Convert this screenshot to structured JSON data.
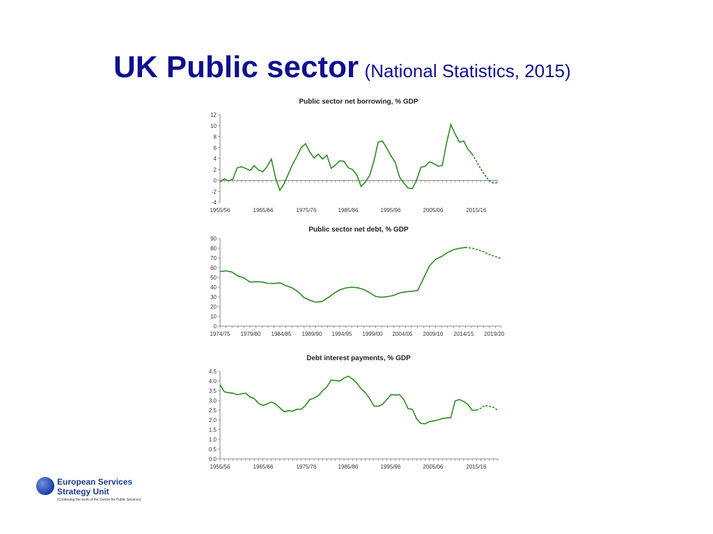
{
  "slide": {
    "title_main": "UK Public sector",
    "title_sub": "(National Statistics, 2015)"
  },
  "logo": {
    "line1": "European Services",
    "line2": "Strategy Unit",
    "tagline": "(Continuing the work of the Centre for Public Services)"
  },
  "colors": {
    "series": "#2a8a1f",
    "title": "#0f0f8f",
    "logo": "#1b3a8a"
  },
  "chart_data": [
    {
      "type": "line",
      "title": "Public sector net borrowing, % GDP",
      "ylim": [
        -4,
        12
      ],
      "yticks": [
        "-4",
        "-2",
        "0",
        "2",
        "4",
        "6",
        "8",
        "10",
        "12"
      ],
      "x_tick_labels": [
        "1955/56",
        "1965/66",
        "1975/76",
        "1985/86",
        "1995/96",
        "2005/06",
        "2015/16"
      ],
      "x_start": "1955/56",
      "x_end": "2020/21",
      "zero_line": true,
      "series_solid": [
        -0.3,
        0.3,
        -0.1,
        0.2,
        2.3,
        2.5,
        2.2,
        1.8,
        2.7,
        1.9,
        1.6,
        2.5,
        3.9,
        0.5,
        -1.8,
        -0.6,
        1.2,
        3.0,
        4.4,
        6.0,
        6.7,
        5.2,
        4.1,
        4.8,
        3.9,
        4.6,
        2.2,
        2.8,
        3.6,
        3.5,
        2.3,
        2.0,
        1.0,
        -1.1,
        -0.3,
        0.9,
        3.5,
        7.0,
        7.2,
        5.9,
        4.5,
        3.3,
        0.6,
        -0.5,
        -1.4,
        -1.5,
        0.1,
        2.4,
        2.6,
        3.4,
        3.1,
        2.6,
        2.7,
        6.8,
        10.2,
        8.5,
        7.0,
        7.2,
        5.7,
        4.8
      ],
      "series_projected": [
        4.8,
        3.5,
        2.1,
        0.9,
        -0.1,
        -0.5,
        -0.4
      ]
    },
    {
      "type": "line",
      "title": "Public sector net debt, % GDP",
      "ylim": [
        0,
        90
      ],
      "yticks": [
        "0",
        "10",
        "20",
        "30",
        "40",
        "50",
        "60",
        "70",
        "80",
        "90"
      ],
      "x_tick_labels": [
        "1974/75",
        "1979/80",
        "1984/85",
        "1989/90",
        "1994/95",
        "1999/00",
        "2004/05",
        "2009/10",
        "2014/15",
        "2019/20"
      ],
      "x_start": "1974/75",
      "x_end": "2020/21",
      "series_solid": [
        56,
        56.8,
        55.5,
        51.5,
        49.5,
        45.2,
        45.6,
        45.3,
        43.9,
        43.8,
        44.5,
        41.5,
        39.5,
        35.5,
        29.5,
        26.5,
        24.5,
        25.2,
        29,
        33.5,
        37.2,
        39.2,
        39.9,
        39.4,
        37.6,
        34.3,
        30.4,
        29.6,
        30.3,
        31.5,
        34,
        35.2,
        35.8,
        36.6,
        49,
        62,
        68.5,
        71.5,
        75.5,
        78.5,
        79.9,
        80.8
      ],
      "series_projected": [
        80.8,
        80.2,
        78.6,
        76.5,
        73.5,
        71.5,
        69.3
      ]
    },
    {
      "type": "line",
      "title": "Debt interest payments, % GDP",
      "ylim": [
        0,
        4.5
      ],
      "yticks": [
        "0.0",
        "0.5",
        "1.0",
        "1.5",
        "2.0",
        "2.5",
        "3.0",
        "3.5",
        "4.0",
        "4.5"
      ],
      "x_tick_labels": [
        "1955/56",
        "1965/66",
        "1975/76",
        "1985/86",
        "1995/96",
        "2005/06",
        "2015/16"
      ],
      "x_start": "1955/56",
      "x_end": "2020/21",
      "series_solid": [
        3.8,
        3.45,
        3.4,
        3.38,
        3.3,
        3.34,
        3.38,
        3.18,
        3.1,
        2.85,
        2.75,
        2.82,
        2.92,
        2.82,
        2.62,
        2.42,
        2.48,
        2.45,
        2.55,
        2.55,
        2.75,
        3.05,
        3.12,
        3.25,
        3.5,
        3.7,
        4.05,
        4.02,
        4.0,
        4.15,
        4.25,
        4.1,
        3.9,
        3.6,
        3.4,
        3.1,
        2.72,
        2.7,
        2.8,
        3.05,
        3.3,
        3.28,
        3.3,
        3.05,
        2.58,
        2.55,
        2.05,
        1.82,
        1.8,
        1.92,
        1.95,
        2.0,
        2.08,
        2.1,
        2.12,
        2.98,
        3.05,
        2.95,
        2.8,
        2.5,
        2.5
      ],
      "series_projected": [
        2.5,
        2.6,
        2.75,
        2.7,
        2.65,
        2.5
      ]
    }
  ]
}
